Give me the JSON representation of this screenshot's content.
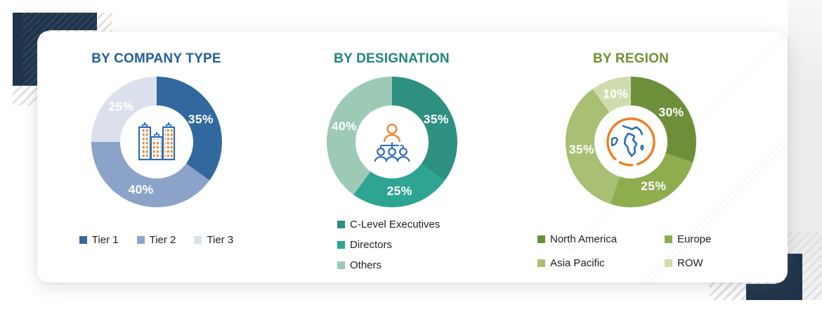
{
  "page": {
    "background_color": "#ffffff",
    "accent_navy": "#1F344A"
  },
  "chart_data": [
    {
      "type": "pie",
      "subtype": "donut",
      "title": "BY COMPANY TYPE",
      "title_color": "#1F5F9A",
      "labels": [
        "Tier 1",
        "Tier 2",
        "Tier 3"
      ],
      "values": [
        35,
        40,
        25
      ],
      "unit": "%",
      "colors": [
        "#31689E",
        "#8CA3C9",
        "#DAE1ED"
      ],
      "data_label_color": "#ffffff",
      "center_icon": "buildings-icon",
      "legend_position": "bottom",
      "legend_layout": "row",
      "start_angle_deg": 0,
      "direction": "clockwise"
    },
    {
      "type": "pie",
      "subtype": "donut",
      "title": "BY DESIGNATION",
      "title_color": "#1E8476",
      "labels": [
        "C-Level Executives",
        "Directors",
        "Others"
      ],
      "values": [
        35,
        25,
        40
      ],
      "unit": "%",
      "colors": [
        "#2E9081",
        "#2EA592",
        "#9CCAB5"
      ],
      "data_label_color": "#ffffff",
      "center_icon": "org-chart-icon",
      "legend_position": "bottom",
      "legend_layout": "column",
      "start_angle_deg": 0,
      "direction": "clockwise"
    },
    {
      "type": "pie",
      "subtype": "donut",
      "title": "BY REGION",
      "title_color": "#6E9232",
      "labels": [
        "North America",
        "Europe",
        "Asia Pacific",
        "ROW"
      ],
      "values": [
        30,
        25,
        35,
        10
      ],
      "unit": "%",
      "colors": [
        "#6E8F3A",
        "#8FAC4F",
        "#A9BF73",
        "#CFDDAE"
      ],
      "data_label_color": "#ffffff",
      "center_icon": "globe-icon",
      "legend_position": "bottom",
      "legend_layout": "grid-2col",
      "start_angle_deg": 0,
      "direction": "clockwise"
    }
  ]
}
